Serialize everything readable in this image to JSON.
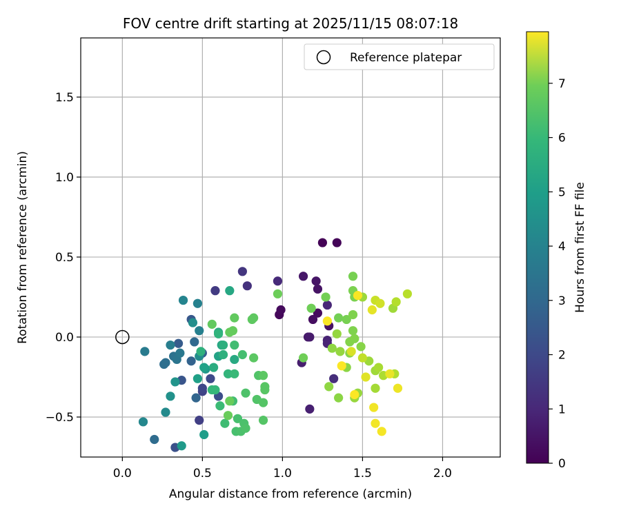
{
  "chart_data": {
    "type": "scatter",
    "title": "FOV centre drift starting at 2025/11/15 08:07:18",
    "xlabel": "Angular distance from reference (arcmin)",
    "ylabel": "Rotation from reference (arcmin)",
    "xlim": [
      -0.26,
      2.36
    ],
    "ylim": [
      -0.75,
      1.87
    ],
    "xticks": [
      0.0,
      0.5,
      1.0,
      1.5,
      2.0
    ],
    "xtick_labels": [
      "0.0",
      "0.5",
      "1.0",
      "1.5",
      "2.0"
    ],
    "yticks": [
      -0.5,
      0.0,
      0.5,
      1.0,
      1.5
    ],
    "ytick_labels": [
      "−0.5",
      "0.0",
      "0.5",
      "1.0",
      "1.5"
    ],
    "grid": true,
    "legend": {
      "position": "top-right",
      "entries": [
        "Reference platepar"
      ]
    },
    "reference_point": {
      "x": 0.0,
      "y": 0.0,
      "label": "Reference platepar"
    },
    "colorbar": {
      "label": "Hours from first FF file",
      "range": [
        0,
        7.95
      ],
      "ticks": [
        0,
        1,
        2,
        3,
        4,
        5,
        6,
        7
      ],
      "tick_labels": [
        "0",
        "1",
        "2",
        "3",
        "4",
        "5",
        "6",
        "7"
      ],
      "colormap": "viridis"
    },
    "points": [
      {
        "x": 1.25,
        "y": 0.59,
        "c": 0.05
      },
      {
        "x": 1.34,
        "y": 0.59,
        "c": 0.1
      },
      {
        "x": 0.98,
        "y": 0.14,
        "c": 0.15
      },
      {
        "x": 0.99,
        "y": 0.17,
        "c": 0.2
      },
      {
        "x": 1.22,
        "y": 0.15,
        "c": 0.25
      },
      {
        "x": 1.19,
        "y": 0.11,
        "c": 0.3
      },
      {
        "x": 1.29,
        "y": 0.07,
        "c": 0.35
      },
      {
        "x": 1.22,
        "y": 0.3,
        "c": 0.4
      },
      {
        "x": 1.21,
        "y": 0.35,
        "c": 0.45
      },
      {
        "x": 1.13,
        "y": 0.38,
        "c": 0.5
      },
      {
        "x": 1.16,
        "y": 0.0,
        "c": 0.55
      },
      {
        "x": 1.17,
        "y": 0.0,
        "c": 0.6
      },
      {
        "x": 1.12,
        "y": -0.16,
        "c": 0.65
      },
      {
        "x": 1.17,
        "y": -0.45,
        "c": 0.7
      },
      {
        "x": 1.28,
        "y": -0.02,
        "c": 0.75
      },
      {
        "x": 1.28,
        "y": -0.04,
        "c": 0.8
      },
      {
        "x": 1.28,
        "y": 0.2,
        "c": 0.85
      },
      {
        "x": 0.97,
        "y": 0.35,
        "c": 0.95
      },
      {
        "x": 1.32,
        "y": -0.26,
        "c": 1.05
      },
      {
        "x": 0.78,
        "y": 0.32,
        "c": 1.15
      },
      {
        "x": 0.75,
        "y": 0.41,
        "c": 1.25
      },
      {
        "x": 0.58,
        "y": 0.29,
        "c": 1.4
      },
      {
        "x": 0.48,
        "y": -0.52,
        "c": 1.5
      },
      {
        "x": 0.5,
        "y": -0.34,
        "c": 1.6
      },
      {
        "x": 0.5,
        "y": -0.32,
        "c": 1.7
      },
      {
        "x": 0.55,
        "y": -0.26,
        "c": 1.8
      },
      {
        "x": 0.6,
        "y": -0.37,
        "c": 1.9
      },
      {
        "x": 0.33,
        "y": -0.69,
        "c": 2.0
      },
      {
        "x": 0.37,
        "y": -0.27,
        "c": 2.1
      },
      {
        "x": 0.43,
        "y": 0.11,
        "c": 2.2
      },
      {
        "x": 0.35,
        "y": -0.04,
        "c": 2.3
      },
      {
        "x": 0.5,
        "y": -0.1,
        "c": 2.35
      },
      {
        "x": 0.43,
        "y": -0.15,
        "c": 2.5
      },
      {
        "x": 0.46,
        "y": -0.38,
        "c": 2.6
      },
      {
        "x": 0.45,
        "y": -0.03,
        "c": 2.7
      },
      {
        "x": 0.2,
        "y": -0.64,
        "c": 2.8
      },
      {
        "x": 0.26,
        "y": -0.17,
        "c": 2.85
      },
      {
        "x": 0.27,
        "y": -0.16,
        "c": 2.9
      },
      {
        "x": 0.32,
        "y": -0.12,
        "c": 3.0
      },
      {
        "x": 0.34,
        "y": -0.14,
        "c": 3.1
      },
      {
        "x": 0.36,
        "y": -0.1,
        "c": 3.2
      },
      {
        "x": 0.14,
        "y": -0.09,
        "c": 3.3
      },
      {
        "x": 0.3,
        "y": -0.05,
        "c": 3.4
      },
      {
        "x": 0.48,
        "y": 0.04,
        "c": 3.45
      },
      {
        "x": 0.47,
        "y": 0.21,
        "c": 3.5
      },
      {
        "x": 0.38,
        "y": 0.23,
        "c": 3.6
      },
      {
        "x": 0.13,
        "y": -0.53,
        "c": 3.7
      },
      {
        "x": 0.27,
        "y": -0.47,
        "c": 3.8
      },
      {
        "x": 0.48,
        "y": -0.12,
        "c": 3.85
      },
      {
        "x": 0.44,
        "y": 0.09,
        "c": 3.9
      },
      {
        "x": 0.3,
        "y": -0.37,
        "c": 4.0
      },
      {
        "x": 0.33,
        "y": -0.28,
        "c": 4.1
      },
      {
        "x": 0.52,
        "y": -0.2,
        "c": 4.2
      },
      {
        "x": 0.37,
        "y": -0.68,
        "c": 4.3
      },
      {
        "x": 0.51,
        "y": -0.61,
        "c": 4.4
      },
      {
        "x": 0.47,
        "y": -0.26,
        "c": 4.5
      },
      {
        "x": 0.51,
        "y": -0.19,
        "c": 4.55
      },
      {
        "x": 0.6,
        "y": -0.12,
        "c": 4.6
      },
      {
        "x": 0.62,
        "y": -0.05,
        "c": 4.7
      },
      {
        "x": 0.67,
        "y": 0.29,
        "c": 4.75
      },
      {
        "x": 0.7,
        "y": -0.14,
        "c": 4.8
      },
      {
        "x": 0.6,
        "y": 0.03,
        "c": 4.85
      },
      {
        "x": 0.57,
        "y": -0.19,
        "c": 4.9
      },
      {
        "x": 0.63,
        "y": -0.05,
        "c": 5.0
      },
      {
        "x": 0.63,
        "y": -0.11,
        "c": 5.05
      },
      {
        "x": 0.49,
        "y": -0.09,
        "c": 5.1
      },
      {
        "x": 0.6,
        "y": 0.02,
        "c": 5.15
      },
      {
        "x": 0.66,
        "y": -0.23,
        "c": 5.2
      },
      {
        "x": 0.58,
        "y": -0.33,
        "c": 5.25
      },
      {
        "x": 0.56,
        "y": -0.33,
        "c": 5.3
      },
      {
        "x": 0.7,
        "y": -0.23,
        "c": 5.35
      },
      {
        "x": 0.61,
        "y": -0.43,
        "c": 5.4
      },
      {
        "x": 0.64,
        "y": -0.54,
        "c": 5.45
      },
      {
        "x": 0.69,
        "y": -0.4,
        "c": 5.5
      },
      {
        "x": 0.7,
        "y": -0.05,
        "c": 5.5
      },
      {
        "x": 0.75,
        "y": -0.11,
        "c": 5.55
      },
      {
        "x": 0.71,
        "y": -0.59,
        "c": 5.6
      },
      {
        "x": 0.72,
        "y": -0.51,
        "c": 5.6
      },
      {
        "x": 0.74,
        "y": -0.59,
        "c": 5.65
      },
      {
        "x": 0.76,
        "y": -0.54,
        "c": 5.65
      },
      {
        "x": 0.77,
        "y": -0.57,
        "c": 5.7
      },
      {
        "x": 0.77,
        "y": -0.35,
        "c": 5.7
      },
      {
        "x": 0.84,
        "y": -0.39,
        "c": 5.75
      },
      {
        "x": 0.85,
        "y": -0.24,
        "c": 5.75
      },
      {
        "x": 0.88,
        "y": -0.41,
        "c": 5.8
      },
      {
        "x": 0.88,
        "y": -0.52,
        "c": 5.8
      },
      {
        "x": 0.89,
        "y": -0.31,
        "c": 5.85
      },
      {
        "x": 0.89,
        "y": -0.33,
        "c": 5.85
      },
      {
        "x": 0.88,
        "y": -0.24,
        "c": 5.9
      },
      {
        "x": 0.82,
        "y": -0.13,
        "c": 5.9
      },
      {
        "x": 0.81,
        "y": 0.11,
        "c": 5.95
      },
      {
        "x": 0.82,
        "y": 0.12,
        "c": 5.95
      },
      {
        "x": 0.7,
        "y": 0.12,
        "c": 6.0
      },
      {
        "x": 0.56,
        "y": 0.08,
        "c": 6.0
      },
      {
        "x": 0.67,
        "y": 0.03,
        "c": 6.05
      },
      {
        "x": 0.69,
        "y": 0.04,
        "c": 6.05
      },
      {
        "x": 0.66,
        "y": -0.49,
        "c": 6.1
      },
      {
        "x": 0.67,
        "y": -0.4,
        "c": 6.1
      },
      {
        "x": 0.97,
        "y": 0.27,
        "c": 6.15
      },
      {
        "x": 1.13,
        "y": -0.13,
        "c": 6.2
      },
      {
        "x": 1.18,
        "y": 0.18,
        "c": 6.2
      },
      {
        "x": 1.27,
        "y": 0.25,
        "c": 6.25
      },
      {
        "x": 1.35,
        "y": 0.12,
        "c": 6.25
      },
      {
        "x": 1.4,
        "y": 0.11,
        "c": 6.3
      },
      {
        "x": 1.44,
        "y": 0.38,
        "c": 6.3
      },
      {
        "x": 1.44,
        "y": 0.29,
        "c": 6.35
      },
      {
        "x": 1.45,
        "y": 0.25,
        "c": 6.35
      },
      {
        "x": 1.44,
        "y": 0.14,
        "c": 6.4
      },
      {
        "x": 1.44,
        "y": 0.04,
        "c": 6.4
      },
      {
        "x": 1.42,
        "y": -0.03,
        "c": 6.45
      },
      {
        "x": 1.45,
        "y": -0.01,
        "c": 6.45
      },
      {
        "x": 1.42,
        "y": -0.1,
        "c": 6.5
      },
      {
        "x": 1.49,
        "y": -0.06,
        "c": 6.5
      },
      {
        "x": 1.4,
        "y": -0.19,
        "c": 6.55
      },
      {
        "x": 1.35,
        "y": -0.38,
        "c": 6.55
      },
      {
        "x": 1.29,
        "y": -0.31,
        "c": 6.6
      },
      {
        "x": 1.31,
        "y": -0.07,
        "c": 6.6
      },
      {
        "x": 1.36,
        "y": -0.09,
        "c": 6.65
      },
      {
        "x": 1.34,
        "y": 0.02,
        "c": 6.65
      },
      {
        "x": 1.47,
        "y": -0.35,
        "c": 6.7
      },
      {
        "x": 1.45,
        "y": -0.38,
        "c": 6.7
      },
      {
        "x": 1.5,
        "y": 0.25,
        "c": 6.75
      },
      {
        "x": 1.54,
        "y": -0.15,
        "c": 6.75
      },
      {
        "x": 1.58,
        "y": -0.21,
        "c": 6.8
      },
      {
        "x": 1.58,
        "y": -0.32,
        "c": 6.85
      },
      {
        "x": 1.6,
        "y": -0.19,
        "c": 6.9
      },
      {
        "x": 1.63,
        "y": -0.24,
        "c": 6.95
      },
      {
        "x": 1.69,
        "y": 0.18,
        "c": 6.8
      },
      {
        "x": 1.7,
        "y": -0.23,
        "c": 7.0
      },
      {
        "x": 1.71,
        "y": 0.22,
        "c": 7.05
      },
      {
        "x": 1.78,
        "y": 0.27,
        "c": 7.1
      },
      {
        "x": 1.5,
        "y": -0.13,
        "c": 7.2
      },
      {
        "x": 1.58,
        "y": 0.23,
        "c": 7.3
      },
      {
        "x": 1.61,
        "y": 0.21,
        "c": 7.4
      },
      {
        "x": 1.43,
        "y": -0.09,
        "c": 7.5
      },
      {
        "x": 1.52,
        "y": -0.25,
        "c": 7.6
      },
      {
        "x": 1.56,
        "y": 0.17,
        "c": 7.65
      },
      {
        "x": 1.67,
        "y": -0.23,
        "c": 7.7
      },
      {
        "x": 1.72,
        "y": -0.32,
        "c": 7.75
      },
      {
        "x": 1.57,
        "y": -0.44,
        "c": 7.8
      },
      {
        "x": 1.58,
        "y": -0.54,
        "c": 7.82
      },
      {
        "x": 1.62,
        "y": -0.59,
        "c": 7.85
      },
      {
        "x": 1.47,
        "y": 0.26,
        "c": 7.88
      },
      {
        "x": 1.28,
        "y": 0.1,
        "c": 7.9
      },
      {
        "x": 1.37,
        "y": -0.18,
        "c": 7.92
      },
      {
        "x": 1.45,
        "y": -0.36,
        "c": 7.93
      }
    ]
  }
}
